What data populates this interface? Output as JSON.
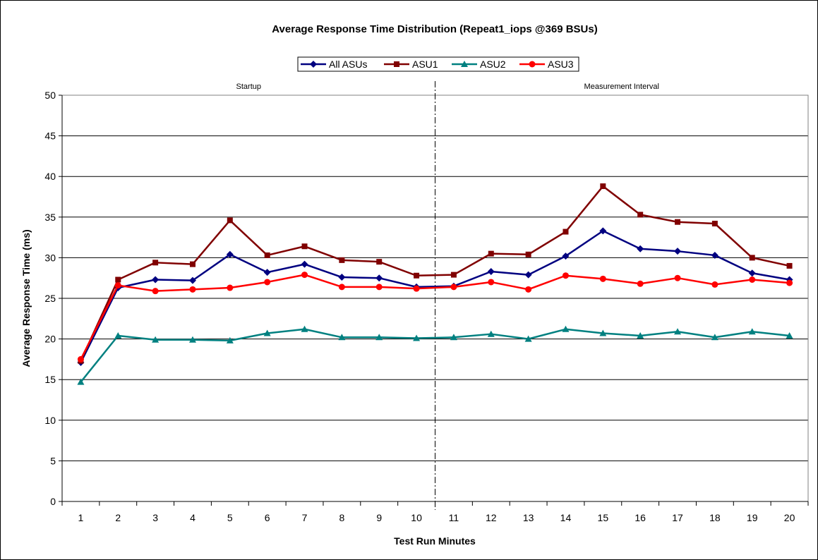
{
  "chart_data": {
    "type": "line",
    "title": "Average Response Time Distribution (Repeat1_iops @369 BSUs)",
    "xlabel": "Test Run Minutes",
    "ylabel": "Average Response Time (ms)",
    "ylim": [
      0,
      50
    ],
    "ytick_step": 5,
    "grid": "horizontal",
    "legend_position": "top-center",
    "x": [
      1,
      2,
      3,
      4,
      5,
      6,
      7,
      8,
      9,
      10,
      11,
      12,
      13,
      14,
      15,
      16,
      17,
      18,
      19,
      20
    ],
    "x_tick_labels": [
      "1",
      "2",
      "3",
      "4",
      "5",
      "6",
      "7",
      "8",
      "9",
      "10",
      "11",
      "12",
      "13",
      "14",
      "15",
      "16",
      "17",
      "18",
      "19",
      "20"
    ],
    "y_tick_labels": [
      "0",
      "5",
      "10",
      "15",
      "20",
      "25",
      "30",
      "35",
      "40",
      "45",
      "50"
    ],
    "divider_after_x": 10,
    "regions": [
      {
        "label": "Startup",
        "from": 1,
        "to": 10
      },
      {
        "label": "Measurement Interval",
        "from": 11,
        "to": 20
      }
    ],
    "series": [
      {
        "name": "All ASUs",
        "color": "#000080",
        "marker": "diamond",
        "values": [
          17.1,
          26.3,
          27.3,
          27.2,
          30.4,
          28.2,
          29.2,
          27.6,
          27.5,
          26.4,
          26.5,
          28.3,
          27.9,
          30.2,
          33.3,
          31.1,
          30.8,
          30.3,
          28.1,
          27.3
        ]
      },
      {
        "name": "ASU1",
        "color": "#800000",
        "marker": "square",
        "values": [
          17.3,
          27.3,
          29.4,
          29.2,
          34.6,
          30.3,
          31.4,
          29.7,
          29.5,
          27.8,
          27.9,
          30.5,
          30.4,
          33.2,
          38.8,
          35.3,
          34.4,
          34.2,
          30.0,
          29.0
        ]
      },
      {
        "name": "ASU2",
        "color": "#008080",
        "marker": "triangle",
        "values": [
          14.7,
          20.4,
          19.9,
          19.9,
          19.8,
          20.7,
          21.2,
          20.2,
          20.2,
          20.1,
          20.2,
          20.6,
          20.0,
          21.2,
          20.7,
          20.4,
          20.9,
          20.2,
          20.9,
          20.4
        ]
      },
      {
        "name": "ASU3",
        "color": "#ff0000",
        "marker": "circle",
        "values": [
          17.5,
          26.6,
          25.9,
          26.1,
          26.3,
          27.0,
          27.9,
          26.4,
          26.4,
          26.2,
          26.4,
          27.0,
          26.1,
          27.8,
          27.4,
          26.8,
          27.5,
          26.7,
          27.3,
          26.9
        ]
      }
    ]
  }
}
